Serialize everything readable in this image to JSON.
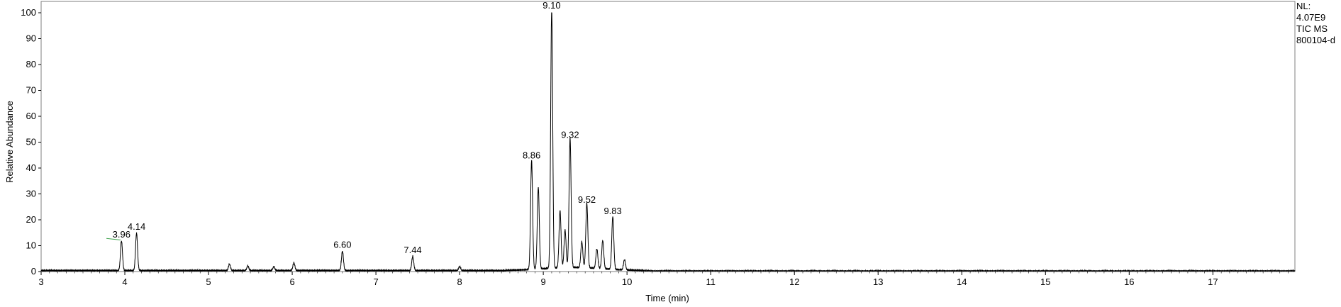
{
  "chart_data": {
    "type": "line",
    "xlabel": "Time (min)",
    "ylabel": "Relative Abundance",
    "xlim": [
      3,
      17.98
    ],
    "ylim": [
      0,
      100
    ],
    "x_ticks": [
      "3",
      "4",
      "5",
      "6",
      "7",
      "8",
      "9",
      "10",
      "11",
      "12",
      "13",
      "14",
      "15",
      "16",
      "17"
    ],
    "y_ticks": [
      "0",
      "10",
      "20",
      "30",
      "40",
      "50",
      "60",
      "70",
      "80",
      "90",
      "100"
    ],
    "info": [
      "NL:",
      "4.07E9",
      "TIC  MS",
      "800104-d"
    ],
    "peaks": [
      {
        "x": 3.96,
        "y": 11.5,
        "label": "3.96"
      },
      {
        "x": 4.14,
        "y": 14.5,
        "label": "4.14"
      },
      {
        "x": 5.25,
        "y": 2.5,
        "label": ""
      },
      {
        "x": 5.47,
        "y": 1.8,
        "label": ""
      },
      {
        "x": 5.78,
        "y": 1.5,
        "label": ""
      },
      {
        "x": 6.02,
        "y": 3.0,
        "label": ""
      },
      {
        "x": 6.6,
        "y": 7.5,
        "label": "6.60"
      },
      {
        "x": 7.44,
        "y": 5.5,
        "label": "7.44"
      },
      {
        "x": 8.0,
        "y": 1.6,
        "label": ""
      },
      {
        "x": 8.86,
        "y": 42.0,
        "label": "8.86"
      },
      {
        "x": 8.94,
        "y": 31.5,
        "label": ""
      },
      {
        "x": 9.1,
        "y": 100.0,
        "label": "9.10"
      },
      {
        "x": 9.2,
        "y": 22.0,
        "label": ""
      },
      {
        "x": 9.26,
        "y": 14.5,
        "label": ""
      },
      {
        "x": 9.32,
        "y": 50.0,
        "label": "9.32"
      },
      {
        "x": 9.46,
        "y": 10.0,
        "label": ""
      },
      {
        "x": 9.52,
        "y": 25.0,
        "label": "9.52"
      },
      {
        "x": 9.64,
        "y": 7.5,
        "label": ""
      },
      {
        "x": 9.71,
        "y": 11.0,
        "label": ""
      },
      {
        "x": 9.83,
        "y": 20.5,
        "label": "9.83"
      },
      {
        "x": 9.97,
        "y": 4.0,
        "label": ""
      }
    ]
  }
}
